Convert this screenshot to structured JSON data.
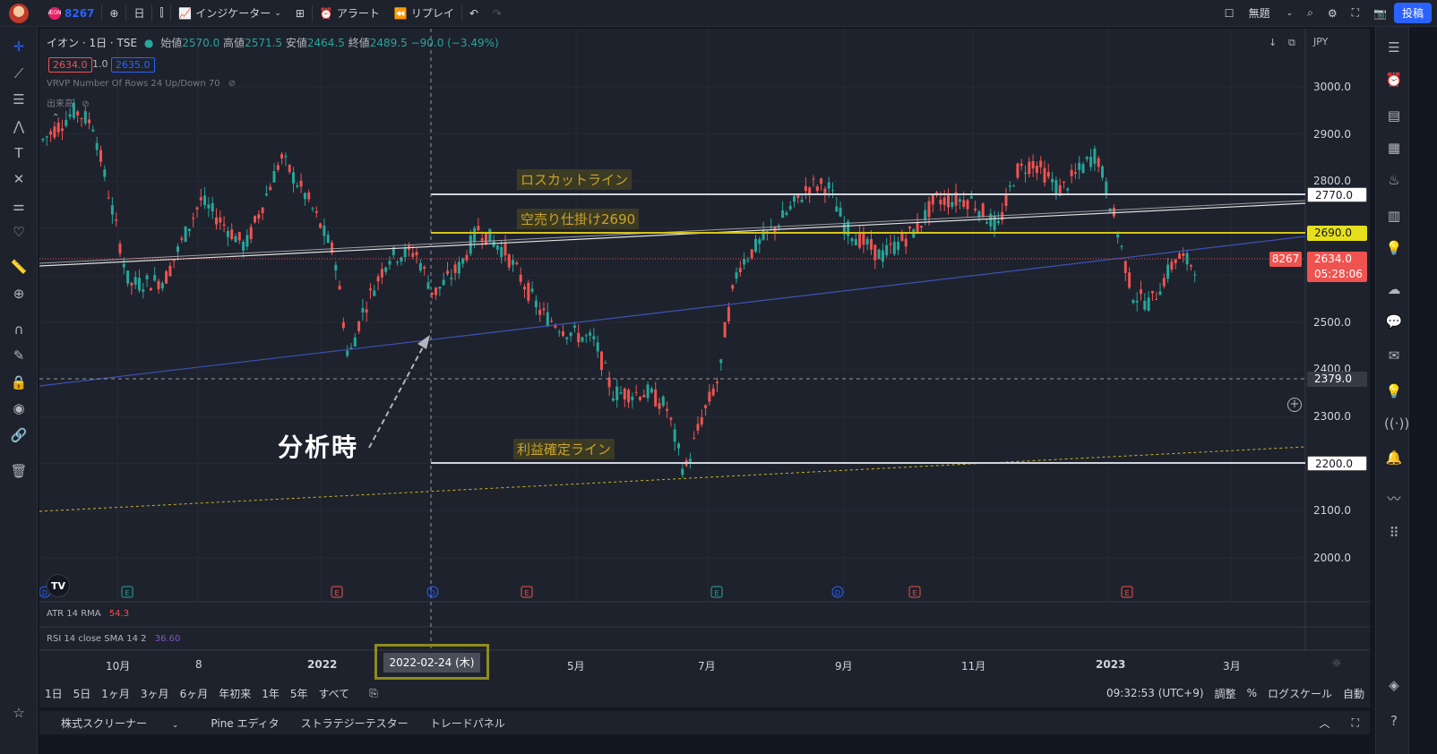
{
  "topbar": {
    "symbol_code": "8267",
    "interval": "日",
    "indicators_label": "インジケーター",
    "alert_label": "アラート",
    "replay_label": "リプレイ",
    "layout_name": "無題",
    "post_label": "投稿"
  },
  "legend": {
    "title": "イオン · 1日 · TSE",
    "open_label": "始値",
    "open": "2570.0",
    "high_label": "高値",
    "high": "2571.5",
    "low_label": "安値",
    "low": "2464.5",
    "close_label": "終値",
    "close": "2489.5",
    "change": "−90.0 (−3.49%)",
    "bid": "2634.0",
    "spread": "1.0",
    "ask": "2635.0",
    "vrvp": "VRVP Number Of Rows 24 Up/Down 70",
    "volume": "出来高"
  },
  "currency": "JPY",
  "price_axis": [
    "3000.0",
    "2900.0",
    "2800.0",
    "2500.0",
    "2400.0",
    "2300.0",
    "2100.0",
    "2000.0"
  ],
  "tags": {
    "stoploss": "2770.0",
    "entry": "2690.0",
    "cursor": "2379.0",
    "takeprofit": "2200.0",
    "last_price": "2634.0",
    "countdown": "05:28:06",
    "last_symbol": "8267"
  },
  "annotations": {
    "stoploss_label": "ロスカットライン",
    "entry_label": "空売り仕掛け2690",
    "takeprofit_label": "利益確定ライン",
    "analysis_label": "分析時"
  },
  "panes": {
    "atr": "ATR 14 RMA",
    "atr_value": "54.3",
    "rsi": "RSI 14 close SMA 14 2",
    "rsi_value": "36.60"
  },
  "time_axis": [
    "10月",
    "8",
    "2022",
    "5月",
    "7月",
    "9月",
    "11月",
    "2023",
    "3月"
  ],
  "cursor_date": "2022-02-24 (木)",
  "ranges": [
    "1日",
    "5日",
    "1ヶ月",
    "3ヶ月",
    "6ヶ月",
    "年初来",
    "1年",
    "5年",
    "すべて"
  ],
  "status": {
    "clock": "09:32:53 (UTC+9)",
    "adjust": "調整",
    "percent": "%",
    "log": "ログスケール",
    "auto": "自動"
  },
  "bottom_tabs": [
    "株式スクリーナー",
    "Pine エディタ",
    "ストラテジーテスター",
    "トレードパネル"
  ],
  "events": [
    "D",
    "E",
    "E",
    "D",
    "E",
    "E",
    "D",
    "E",
    "E"
  ],
  "colors": {
    "up": "#26a69a",
    "down": "#ef5350",
    "accent": "#2962ff",
    "entry": "#d4c418",
    "stoploss": "#d1d4dc"
  }
}
